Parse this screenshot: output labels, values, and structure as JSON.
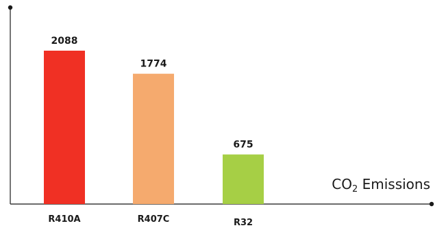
{
  "chart_data": {
    "type": "bar",
    "categories": [
      "R410A",
      "R407C",
      "R32"
    ],
    "values": [
      2088,
      1774,
      675
    ],
    "value_labels": [
      "2088",
      "1774",
      "675"
    ],
    "ylim": [
      0,
      2700
    ],
    "xlabel": {
      "prefix": "CO",
      "subscript": "2",
      "suffix": " Emissions"
    },
    "title": "",
    "ylabel": "",
    "grid": false,
    "legend": "none",
    "colors": [
      "#f03024",
      "#f5aa6e",
      "#a6cf45"
    ]
  }
}
